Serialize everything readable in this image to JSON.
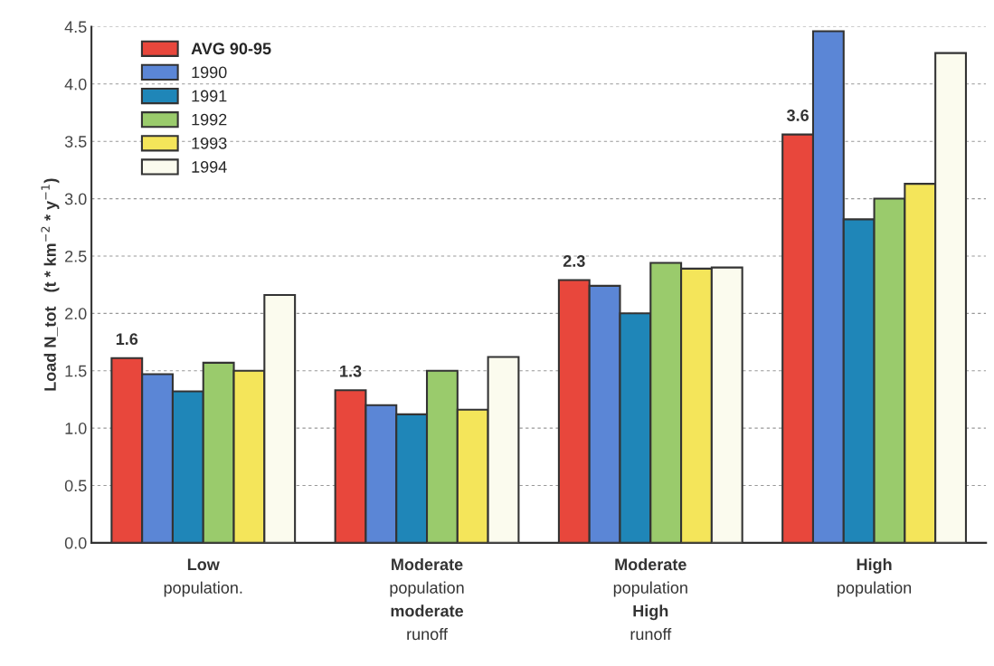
{
  "chart_data": {
    "type": "bar",
    "ylabel": "Load N_tot   (t * km$^{−2}$ * y$^{−1}$)",
    "categories": [
      "Low\npopulation.",
      "Moderate\npopulation\nmoderate\nrunoff",
      "Moderate\npopulation\nHigh\nrunoff",
      "High\npopulation"
    ],
    "series": [
      {
        "name": "AVG 90-95",
        "color": "#e8473c",
        "values": [
          1.61,
          1.33,
          2.29,
          3.56
        ],
        "value_labels": [
          "1.6",
          "1.3",
          "2.3",
          "3.6"
        ]
      },
      {
        "name": "1990",
        "color": "#5b86d6",
        "values": [
          1.47,
          1.2,
          2.24,
          4.46
        ]
      },
      {
        "name": "1991",
        "color": "#1f86b8",
        "values": [
          1.32,
          1.12,
          2.0,
          2.82
        ]
      },
      {
        "name": "1992",
        "color": "#9acb6c",
        "values": [
          1.57,
          1.5,
          2.44,
          3.0
        ]
      },
      {
        "name": "1993",
        "color": "#f4e55a",
        "values": [
          1.5,
          1.16,
          2.39,
          3.13
        ]
      },
      {
        "name": "1994",
        "color": "#fbfbee",
        "values": [
          2.16,
          1.62,
          2.4,
          4.27
        ]
      }
    ],
    "ylim": [
      0,
      4.5
    ],
    "yticks": [
      {
        "value": 0,
        "label": "0.0"
      },
      0.5,
      {
        "value": 1,
        "label": "1.0"
      },
      1.5,
      {
        "value": 2,
        "label": "2.0"
      },
      2.5,
      {
        "value": 3,
        "label": "3.0"
      },
      3.5,
      {
        "value": 4,
        "label": "4.0"
      },
      4.5
    ],
    "grid": "y",
    "legend": "top left"
  }
}
